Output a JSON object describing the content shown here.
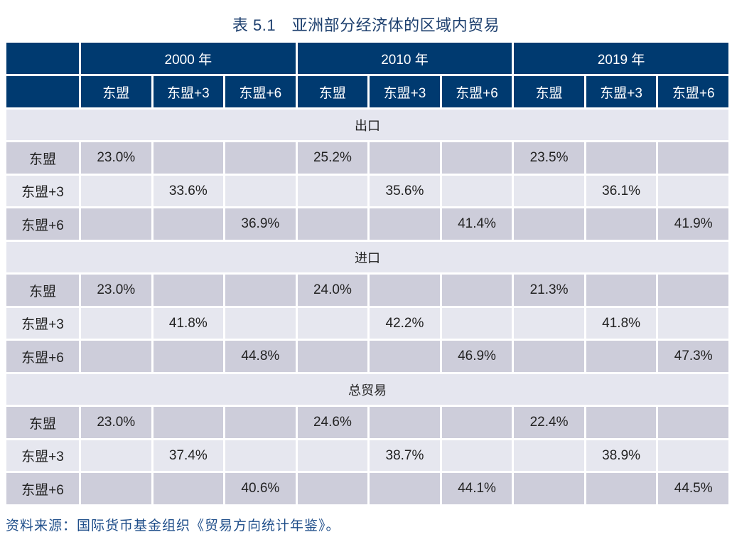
{
  "title": "表 5.1　亚洲部分经济体的区域内贸易",
  "header": {
    "years": [
      "2000 年",
      "2010 年",
      "2019 年"
    ],
    "groups": [
      "东盟",
      "东盟+3",
      "东盟+6"
    ]
  },
  "sections": [
    {
      "label": "出口",
      "rows": [
        {
          "label": "东盟",
          "values": [
            "23.0%",
            "",
            "",
            "25.2%",
            "",
            "",
            "23.5%",
            "",
            ""
          ]
        },
        {
          "label": "东盟+3",
          "values": [
            "",
            "33.6%",
            "",
            "",
            "35.6%",
            "",
            "",
            "36.1%",
            ""
          ]
        },
        {
          "label": "东盟+6",
          "values": [
            "",
            "",
            "36.9%",
            "",
            "",
            "41.4%",
            "",
            "",
            "41.9%"
          ]
        }
      ]
    },
    {
      "label": "进口",
      "rows": [
        {
          "label": "东盟",
          "values": [
            "23.0%",
            "",
            "",
            "24.0%",
            "",
            "",
            "21.3%",
            "",
            ""
          ]
        },
        {
          "label": "东盟+3",
          "values": [
            "",
            "41.8%",
            "",
            "",
            "42.2%",
            "",
            "",
            "41.8%",
            ""
          ]
        },
        {
          "label": "东盟+6",
          "values": [
            "",
            "",
            "44.8%",
            "",
            "",
            "46.9%",
            "",
            "",
            "47.3%"
          ]
        }
      ]
    },
    {
      "label": "总贸易",
      "rows": [
        {
          "label": "东盟",
          "values": [
            "23.0%",
            "",
            "",
            "24.6%",
            "",
            "",
            "22.4%",
            "",
            ""
          ]
        },
        {
          "label": "东盟+3",
          "values": [
            "",
            "37.4%",
            "",
            "",
            "38.7%",
            "",
            "",
            "38.9%",
            ""
          ]
        },
        {
          "label": "东盟+6",
          "values": [
            "",
            "",
            "40.6%",
            "",
            "",
            "44.1%",
            "",
            "",
            "44.5%"
          ]
        }
      ]
    }
  ],
  "source": "资料来源：国际货币基金组织《贸易方向统计年鉴》。"
}
